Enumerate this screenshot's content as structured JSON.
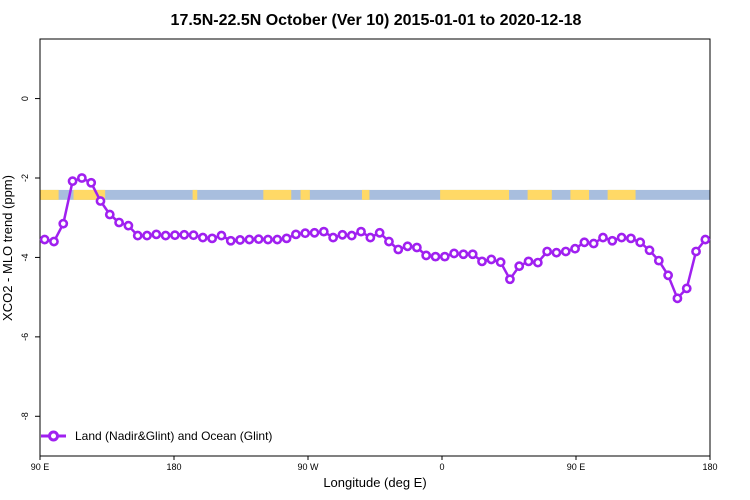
{
  "chart_data": {
    "type": "line",
    "title": "17.5N-22.5N October (Ver 10)   2015-01-01 to 2020-12-18",
    "xlabel": "Longitude (deg E)",
    "ylabel": "XCO2 - MLO trend (ppm)",
    "xlim": [
      -90,
      270
    ],
    "ylim": [
      -9,
      1.5
    ],
    "x_ticks": [
      {
        "value": -90,
        "label": "90 E"
      },
      {
        "value": -18,
        "label": "180"
      },
      {
        "value": 54,
        "label": "90 W"
      },
      {
        "value": 126,
        "label": "0"
      },
      {
        "value": 198,
        "label": "90 E"
      },
      {
        "value": 270,
        "label": "180"
      }
    ],
    "y_ticks": [
      0,
      -2,
      -4,
      -6,
      -8
    ],
    "grid": false,
    "legend_position": "bottom-left",
    "series": [
      {
        "name": "Land (Nadir&Glint) and Ocean (Glint)",
        "color": "#a020f0",
        "x": [
          -87.5,
          -82.5,
          -77.5,
          -72.5,
          -67.5,
          -62.5,
          -57.5,
          -52.5,
          -47.5,
          -42.5,
          -37.5,
          -32.5,
          -27.5,
          -22.5,
          -17.5,
          -12.5,
          -7.5,
          -2.5,
          2.5,
          7.5,
          12.5,
          17.5,
          22.5,
          27.5,
          32.5,
          37.5,
          42.5,
          47.5,
          52.5,
          57.5,
          62.5,
          67.5,
          72.5,
          77.5,
          82.5,
          87.5,
          92.5,
          97.5,
          102.5,
          107.5,
          112.5,
          117.5,
          122.5,
          127.5,
          132.5,
          137.5,
          142.5,
          147.5,
          152.5,
          157.5,
          162.5,
          167.5,
          172.5,
          177.5,
          182.5,
          187.5,
          192.5,
          197.5,
          202.5,
          207.5,
          212.5,
          217.5,
          222.5,
          227.5,
          232.5,
          237.5,
          242.5,
          247.5,
          252.5,
          257.5,
          262.5,
          267.5
        ],
        "values": [
          -3.55,
          -3.6,
          -3.15,
          -2.08,
          -2.0,
          -2.12,
          -2.58,
          -2.92,
          -3.12,
          -3.2,
          -3.45,
          -3.45,
          -3.42,
          -3.45,
          -3.44,
          -3.43,
          -3.44,
          -3.5,
          -3.52,
          -3.45,
          -3.58,
          -3.56,
          -3.55,
          -3.54,
          -3.55,
          -3.55,
          -3.52,
          -3.42,
          -3.39,
          -3.38,
          -3.35,
          -3.5,
          -3.43,
          -3.45,
          -3.35,
          -3.5,
          -3.38,
          -3.6,
          -3.8,
          -3.72,
          -3.75,
          -3.95,
          -3.98,
          -3.98,
          -3.9,
          -3.92,
          -3.92,
          -4.1,
          -4.05,
          -4.12,
          -4.55,
          -4.22,
          -4.1,
          -4.13,
          -3.85,
          -3.88,
          -3.85,
          -3.78,
          -3.62,
          -3.65,
          -3.5,
          -3.58,
          -3.5,
          -3.52,
          -3.62,
          -3.82,
          -4.08,
          -4.45,
          -5.03,
          -4.78,
          -3.85,
          -3.55
        ]
      }
    ],
    "surface_bar": {
      "y_range": [
        -2.55,
        -2.3
      ],
      "ocean_color": "#a8bede",
      "land_color": "#ffd966",
      "land_segments": [
        [
          -90,
          -80
        ],
        [
          -72,
          -55
        ],
        [
          -8,
          -5.5
        ],
        [
          30,
          45
        ],
        [
          50,
          55
        ],
        [
          83,
          87
        ],
        [
          125,
          162
        ],
        [
          172,
          185
        ],
        [
          195,
          205
        ],
        [
          215,
          230
        ]
      ]
    }
  }
}
